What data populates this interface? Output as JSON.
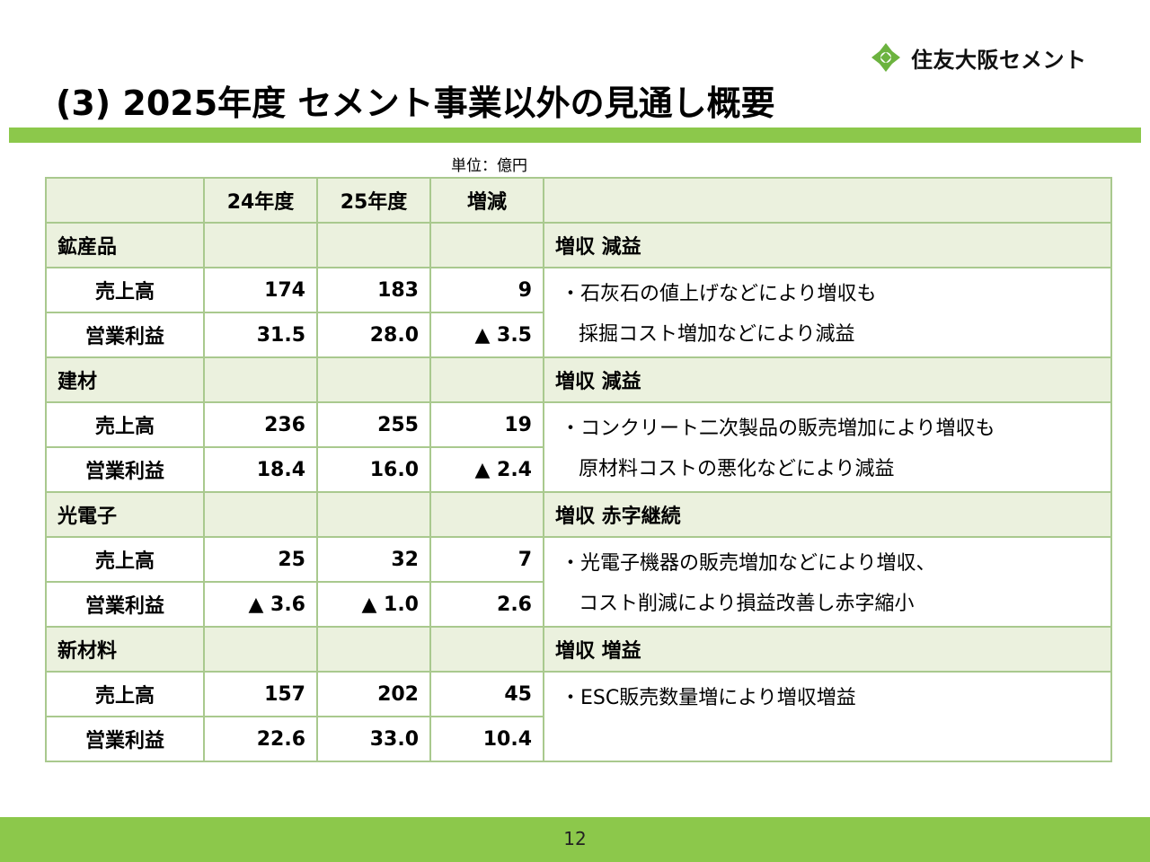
{
  "header": {
    "logo_text": "住友大阪セメント",
    "title": "(3) 2025年度 セメント事業以外の見通し概要",
    "unit": "単位：億円"
  },
  "colors": {
    "accent_green": "#8cc84b",
    "table_border": "#a9c98e",
    "header_fill": "#ebf1de"
  },
  "table": {
    "columns": [
      "",
      "24年度",
      "25年度",
      "増減",
      ""
    ],
    "segments": [
      {
        "name": "鉱産品",
        "summary": "増収 減益",
        "rows": [
          {
            "label": "売上高",
            "fy24": "174",
            "fy25": "183",
            "diff": "9"
          },
          {
            "label": "営業利益",
            "fy24": "31.5",
            "fy25": "28.0",
            "diff": "▲ 3.5"
          }
        ],
        "desc": [
          "・石灰石の値上げなどにより増収も",
          "採掘コスト増加などにより減益"
        ]
      },
      {
        "name": "建材",
        "summary": "増収 減益",
        "rows": [
          {
            "label": "売上高",
            "fy24": "236",
            "fy25": "255",
            "diff": "19"
          },
          {
            "label": "営業利益",
            "fy24": "18.4",
            "fy25": "16.0",
            "diff": "▲ 2.4"
          }
        ],
        "desc": [
          "・コンクリート二次製品の販売増加により増収も",
          "原材料コストの悪化などにより減益"
        ]
      },
      {
        "name": "光電子",
        "summary": "増収 赤字継続",
        "rows": [
          {
            "label": "売上高",
            "fy24": "25",
            "fy25": "32",
            "diff": "7"
          },
          {
            "label": "営業利益",
            "fy24": "▲ 3.6",
            "fy25": "▲ 1.0",
            "diff": "2.6"
          }
        ],
        "desc": [
          "・光電子機器の販売増加などにより増収、",
          "コスト削減により損益改善し赤字縮小"
        ]
      },
      {
        "name": "新材料",
        "summary": "増収 増益",
        "rows": [
          {
            "label": "売上高",
            "fy24": "157",
            "fy25": "202",
            "diff": "45"
          },
          {
            "label": "営業利益",
            "fy24": "22.6",
            "fy25": "33.0",
            "diff": "10.4"
          }
        ],
        "desc": [
          "・ESC販売数量増により増収増益"
        ]
      }
    ]
  },
  "footer": {
    "page": "12"
  }
}
